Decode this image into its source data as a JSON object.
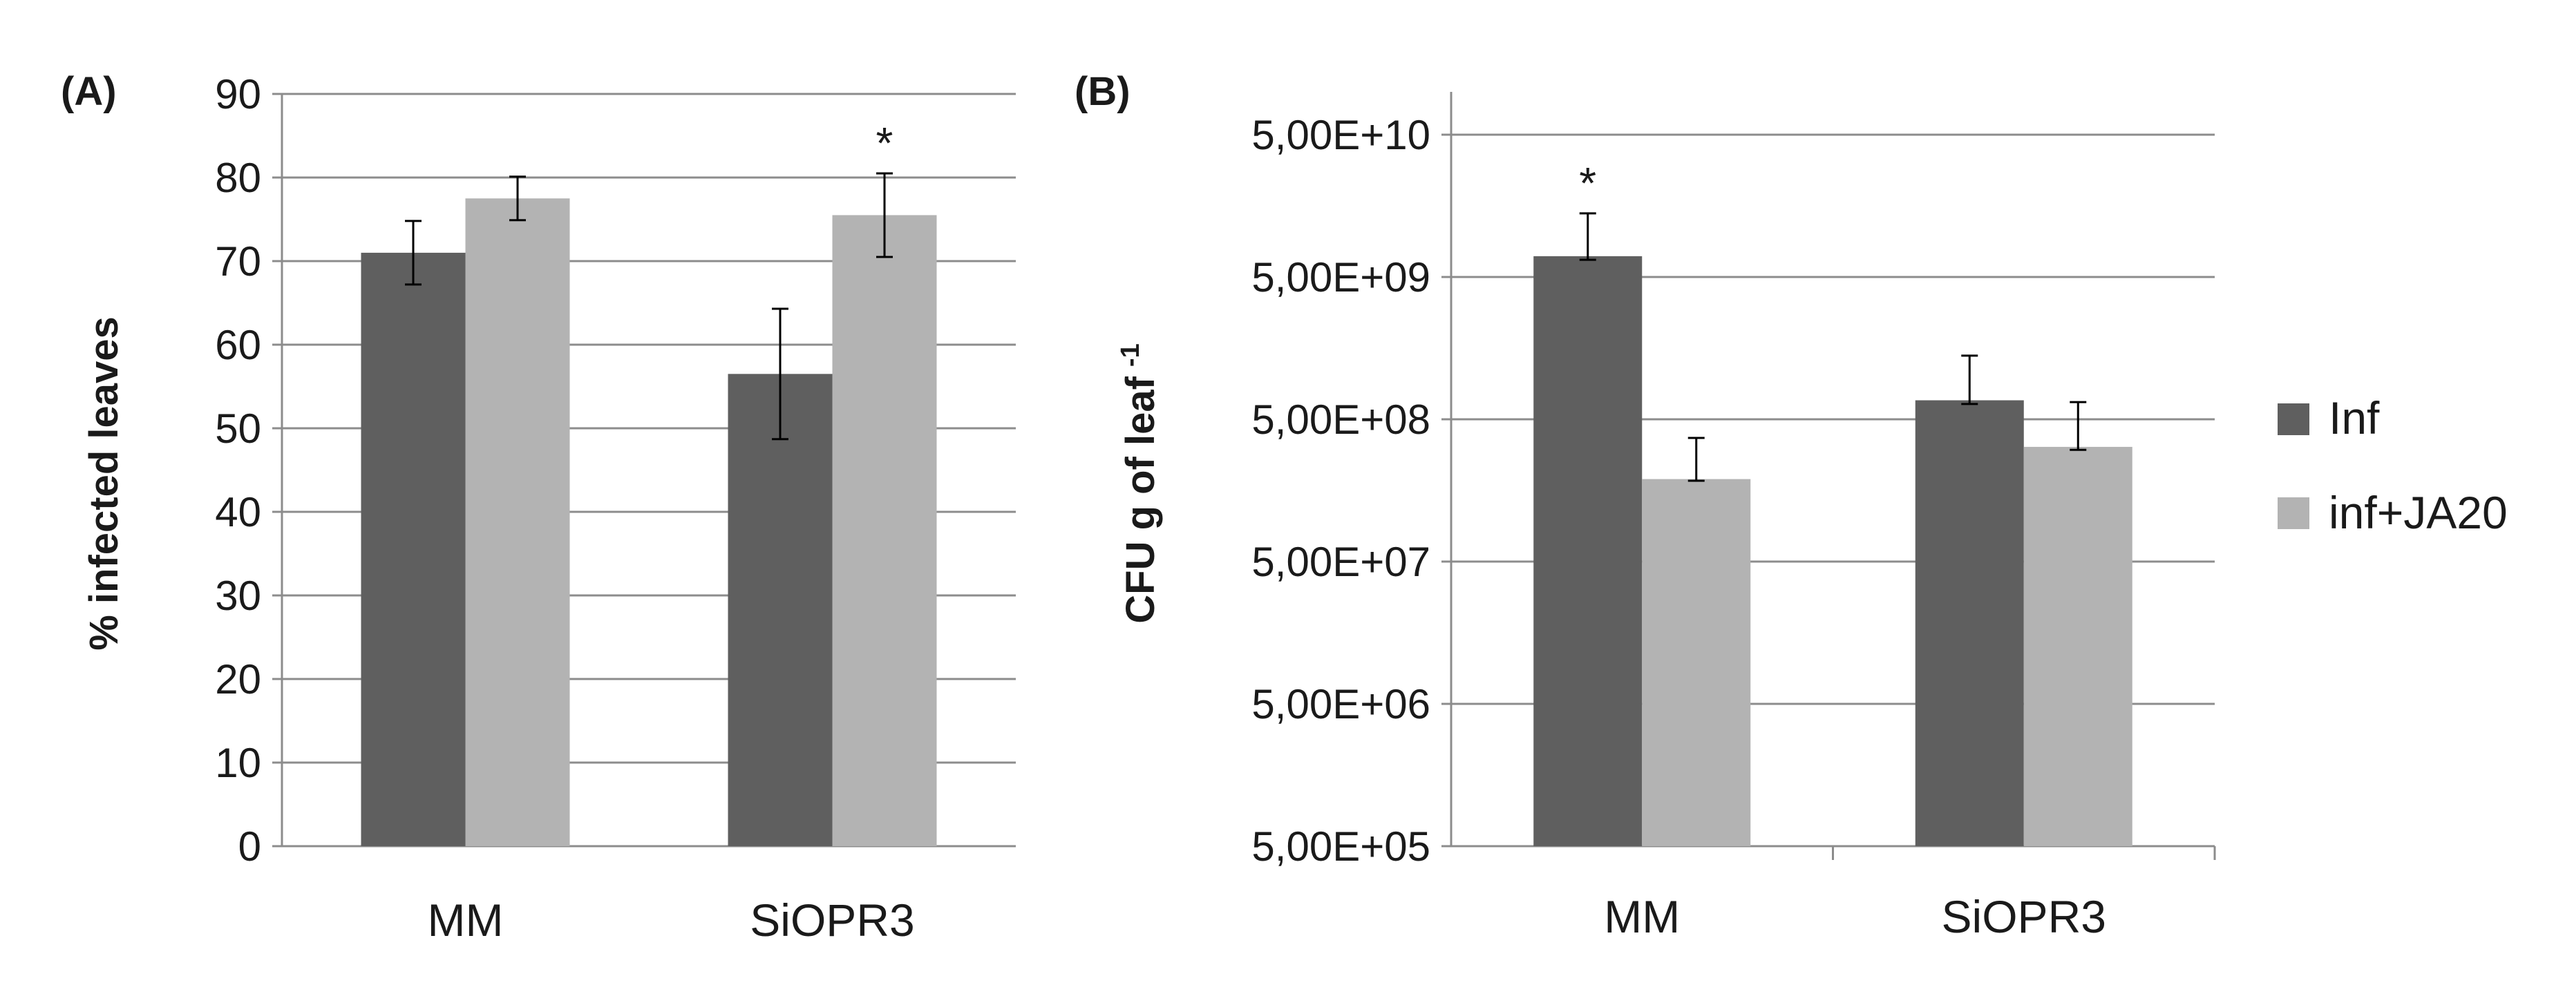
{
  "series_colors": {
    "Inf": "#5f5f5f",
    "inf+JA20": "#b3b3b3"
  },
  "legend": [
    {
      "name": "Inf",
      "color": "#5f5f5f"
    },
    {
      "name": "inf+JA20",
      "color": "#b3b3b3"
    }
  ],
  "chart_data": [
    {
      "type": "bar",
      "panel_label": "(A)",
      "categories": [
        "MM",
        "SiOPR3"
      ],
      "series": [
        {
          "name": "Inf",
          "values": [
            71,
            56.5
          ],
          "errors": [
            3.8,
            7.8
          ]
        },
        {
          "name": "inf+JA20",
          "values": [
            77.5,
            75.5
          ],
          "errors": [
            2.6,
            5.0
          ]
        }
      ],
      "ylabel": "% infected leaves",
      "ylim": [
        0,
        90
      ],
      "yticks": [
        "0",
        "10",
        "20",
        "30",
        "40",
        "50",
        "60",
        "70",
        "80",
        "90"
      ],
      "ytick_values": [
        0,
        10,
        20,
        30,
        40,
        50,
        60,
        70,
        80,
        90
      ],
      "significance": [
        {
          "category": "SiOPR3",
          "series": "inf+JA20",
          "label": "*"
        }
      ]
    },
    {
      "type": "bar",
      "panel_label": "(B)",
      "yscale": "log",
      "categories": [
        "MM",
        "SiOPR3"
      ],
      "series": [
        {
          "name": "Inf",
          "values": [
            7000000000,
            680000000
          ],
          "err_low": [
            6600000000,
            640000000
          ],
          "err_high": [
            14000000000,
            1400000000
          ]
        },
        {
          "name": "inf+JA20",
          "values": [
            190000000,
            320000000
          ],
          "err_low": [
            185000000,
            305000000
          ],
          "err_high": [
            370000000,
            660000000
          ]
        }
      ],
      "ylabel_main": "CFU g of leaf",
      "ylabel_sup": "-1",
      "ylim": [
        500000,
        100000000000
      ],
      "yticks": [
        "5,00E+05",
        "5,00E+06",
        "5,00E+07",
        "5,00E+08",
        "5,00E+09",
        "5,00E+10"
      ],
      "ytick_values": [
        500000,
        5000000,
        50000000,
        500000000,
        5000000000,
        50000000000
      ],
      "significance": [
        {
          "category": "MM",
          "series": "Inf",
          "label": "*"
        }
      ]
    }
  ]
}
